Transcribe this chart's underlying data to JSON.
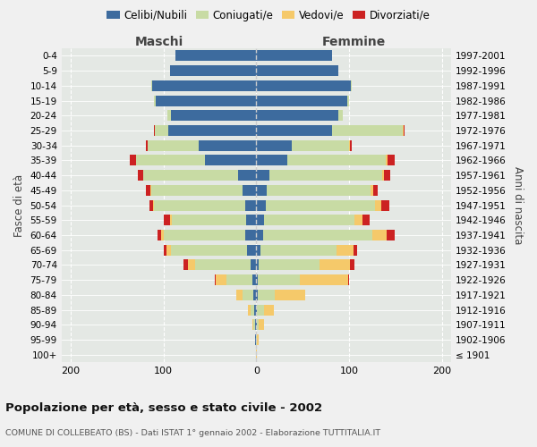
{
  "age_groups": [
    "0-4",
    "5-9",
    "10-14",
    "15-19",
    "20-24",
    "25-29",
    "30-34",
    "35-39",
    "40-44",
    "45-49",
    "50-54",
    "55-59",
    "60-64",
    "65-69",
    "70-74",
    "75-79",
    "80-84",
    "85-89",
    "90-94",
    "95-99",
    "100+"
  ],
  "birth_years": [
    "1997-2001",
    "1992-1996",
    "1987-1991",
    "1982-1986",
    "1977-1981",
    "1972-1976",
    "1967-1971",
    "1962-1966",
    "1957-1961",
    "1952-1956",
    "1947-1951",
    "1942-1946",
    "1937-1941",
    "1932-1936",
    "1927-1931",
    "1922-1926",
    "1917-1921",
    "1912-1916",
    "1907-1911",
    "1902-1906",
    "≤ 1901"
  ],
  "males": {
    "celibe": [
      87,
      93,
      112,
      108,
      92,
      95,
      62,
      55,
      20,
      15,
      12,
      11,
      12,
      10,
      6,
      4,
      3,
      2,
      1,
      1,
      0
    ],
    "coniugato": [
      0,
      0,
      1,
      2,
      4,
      14,
      55,
      75,
      102,
      98,
      98,
      80,
      88,
      82,
      60,
      28,
      12,
      4,
      2,
      0,
      0
    ],
    "vedovo": [
      0,
      0,
      0,
      0,
      0,
      0,
      0,
      0,
      0,
      1,
      1,
      2,
      3,
      5,
      8,
      12,
      7,
      3,
      1,
      0,
      0
    ],
    "divorziato": [
      0,
      0,
      0,
      0,
      0,
      1,
      2,
      6,
      6,
      5,
      4,
      7,
      3,
      3,
      4,
      1,
      0,
      0,
      0,
      0,
      0
    ]
  },
  "females": {
    "nubile": [
      82,
      88,
      102,
      98,
      88,
      82,
      38,
      33,
      14,
      11,
      10,
      8,
      7,
      5,
      3,
      2,
      2,
      1,
      1,
      0,
      0
    ],
    "coniugata": [
      0,
      0,
      1,
      2,
      5,
      76,
      62,
      107,
      122,
      112,
      118,
      98,
      118,
      82,
      65,
      45,
      18,
      7,
      2,
      1,
      0
    ],
    "vedova": [
      0,
      0,
      0,
      0,
      0,
      1,
      1,
      2,
      2,
      3,
      7,
      9,
      16,
      18,
      33,
      52,
      33,
      11,
      5,
      2,
      1
    ],
    "divorziata": [
      0,
      0,
      0,
      0,
      0,
      1,
      2,
      7,
      6,
      5,
      8,
      7,
      8,
      4,
      5,
      1,
      0,
      0,
      0,
      0,
      0
    ]
  },
  "colors": {
    "celibe": "#3d6b9e",
    "coniugato": "#c8dba4",
    "vedovo": "#f5c96a",
    "divorziato": "#cc2222"
  },
  "title": "Popolazione per età, sesso e stato civile - 2002",
  "subtitle": "COMUNE DI COLLEBEATO (BS) - Dati ISTAT 1° gennaio 2002 - Elaborazione TUTTITALIA.IT",
  "xlabel_left": "Maschi",
  "xlabel_right": "Femmine",
  "ylabel_left": "Fasce di età",
  "ylabel_right": "Anni di nascita",
  "xlim": 210,
  "legend_labels": [
    "Celibi/Nubili",
    "Coniugati/e",
    "Vedovi/e",
    "Divorziati/e"
  ],
  "background_color": "#f0f0f0",
  "plot_background": "#e4e8e4"
}
